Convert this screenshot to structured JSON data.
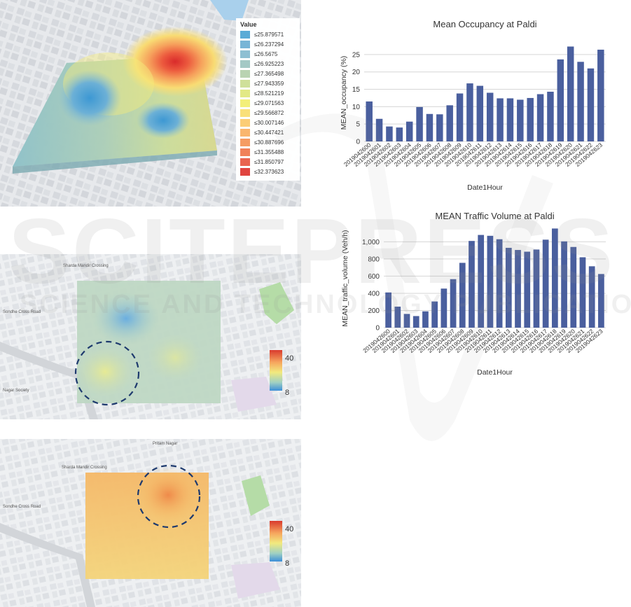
{
  "maps": {
    "map1": {
      "legend_title": "Value",
      "legend": [
        {
          "label": "≤25.879571",
          "color": "#5aabd6"
        },
        {
          "label": "≤26.237294",
          "color": "#78b5d6"
        },
        {
          "label": "≤26.5675",
          "color": "#8ebfd2"
        },
        {
          "label": "≤26.925223",
          "color": "#a4c9c5"
        },
        {
          "label": "≤27.365498",
          "color": "#b9d3b2"
        },
        {
          "label": "≤27.943359",
          "color": "#cfe09a"
        },
        {
          "label": "≤28.521219",
          "color": "#e2e985"
        },
        {
          "label": "≤29.071563",
          "color": "#f3ef7a"
        },
        {
          "label": "≤29.566872",
          "color": "#f9e07a"
        },
        {
          "label": "≤30.007146",
          "color": "#fbcd76"
        },
        {
          "label": "≤30.447421",
          "color": "#f9b66e"
        },
        {
          "label": "≤30.887696",
          "color": "#f59c63"
        },
        {
          "label": "≤31.355488",
          "color": "#f08159"
        },
        {
          "label": "≤31.850797",
          "color": "#e96450"
        },
        {
          "label": "≤32.373623",
          "color": "#e0443f"
        }
      ]
    },
    "map2": {
      "scale_max": "40",
      "scale_min": "8",
      "place_labels": [
        "Sharda Mandir Crossing",
        "Sondhe Cross Road",
        "Nagar Society"
      ]
    },
    "map3": {
      "scale_max": "40",
      "scale_min": "8",
      "place_labels": [
        "Pritam Nagar",
        "Sharda Mandir Crossing",
        "Sondhe Cross Road"
      ]
    }
  },
  "chart_data": [
    {
      "id": "occupancy",
      "type": "bar",
      "title": "Mean Occupancy at Paldi",
      "xlabel": "Date1Hour",
      "ylabel": "MEAN_occupancy (%)",
      "ylim": [
        0,
        28
      ],
      "yticks": [
        0,
        5,
        10,
        15,
        20,
        25
      ],
      "categories": [
        "2019042600",
        "2019042601",
        "2019042602",
        "2019042603",
        "2019042604",
        "2019042605",
        "2019042606",
        "2019042607",
        "2019042608",
        "2019042609",
        "2019042610",
        "2019042611",
        "2019042612",
        "2019042613",
        "2019042614",
        "2019042615",
        "2019042616",
        "2019042617",
        "2019042618",
        "2019042619",
        "2019042620",
        "2019042621",
        "2019042622",
        "2019042623"
      ],
      "values": [
        11.5,
        6.5,
        4.3,
        4.0,
        5.7,
        9.9,
        7.9,
        7.8,
        10.4,
        13.8,
        16.7,
        16.0,
        14.0,
        12.4,
        12.4,
        12.0,
        12.5,
        13.6,
        14.3,
        23.6,
        27.3,
        22.9,
        21.0,
        26.4
      ],
      "grid": true,
      "color": "#4a5f9e"
    },
    {
      "id": "traffic",
      "type": "bar",
      "title": "MEAN Traffic Volume at Paldi",
      "xlabel": "Date1Hour",
      "ylabel": "MEAN_traffic_volume (Veh/h)",
      "ylim": [
        0,
        1150
      ],
      "yticks": [
        0,
        200,
        400,
        600,
        800,
        1000
      ],
      "ytick_labels": [
        "0",
        "200",
        "400",
        "600",
        "800",
        "1,000"
      ],
      "categories": [
        "2019042600",
        "2019042601",
        "2019042602",
        "2019042603",
        "2019042604",
        "2019042605",
        "2019042606",
        "2019042607",
        "2019042608",
        "2019042609",
        "2019042610",
        "2019042611",
        "2019042612",
        "2019042613",
        "2019042614",
        "2019042615",
        "2019042616",
        "2019042617",
        "2019042618",
        "2019042619",
        "2019042620",
        "2019042621",
        "2019042622",
        "2019042623"
      ],
      "values": [
        410,
        245,
        160,
        135,
        190,
        305,
        455,
        565,
        755,
        1010,
        1080,
        1070,
        1030,
        930,
        905,
        885,
        910,
        1025,
        1155,
        1005,
        940,
        820,
        715,
        625
      ],
      "grid": true,
      "color": "#4a5f9e"
    }
  ],
  "watermark": {
    "big": "SCITEPRESS",
    "small": "SCIENCE AND TECHNOLOGY PUBLICATIONS"
  }
}
